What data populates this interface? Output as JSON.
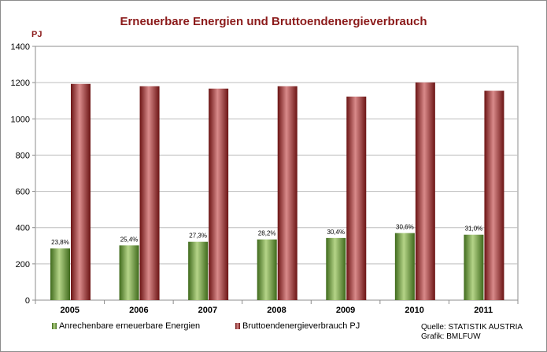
{
  "chart_data": {
    "type": "bar",
    "title": "Erneuerbare Energien und Bruttoendenergieverbrauch",
    "ylabel": "PJ",
    "xlabel": "",
    "categories": [
      "2005",
      "2006",
      "2007",
      "2008",
      "2009",
      "2010",
      "2011"
    ],
    "ylim": [
      0,
      1400
    ],
    "yticks": [
      0,
      200,
      400,
      600,
      800,
      1000,
      1200,
      1400
    ],
    "grid": true,
    "legend_position": "bottom",
    "series": [
      {
        "name": "Anrechenbare erneuerbare Energien",
        "color": "#6e9a3c",
        "values": [
          285,
          302,
          322,
          335,
          343,
          370,
          361
        ],
        "labels": [
          "23,8%",
          "25,4%",
          "27,3%",
          "28,2%",
          "30,4%",
          "30,6%",
          "31,0%"
        ]
      },
      {
        "name": "Bruttoendenergieverbrauch PJ",
        "color": "#a03434",
        "values": [
          1193,
          1180,
          1167,
          1180,
          1123,
          1201,
          1155
        ]
      }
    ]
  },
  "source": {
    "line1": "Quelle: STATISTIK AUSTRIA",
    "line2": "Grafik: BMLFUW"
  }
}
